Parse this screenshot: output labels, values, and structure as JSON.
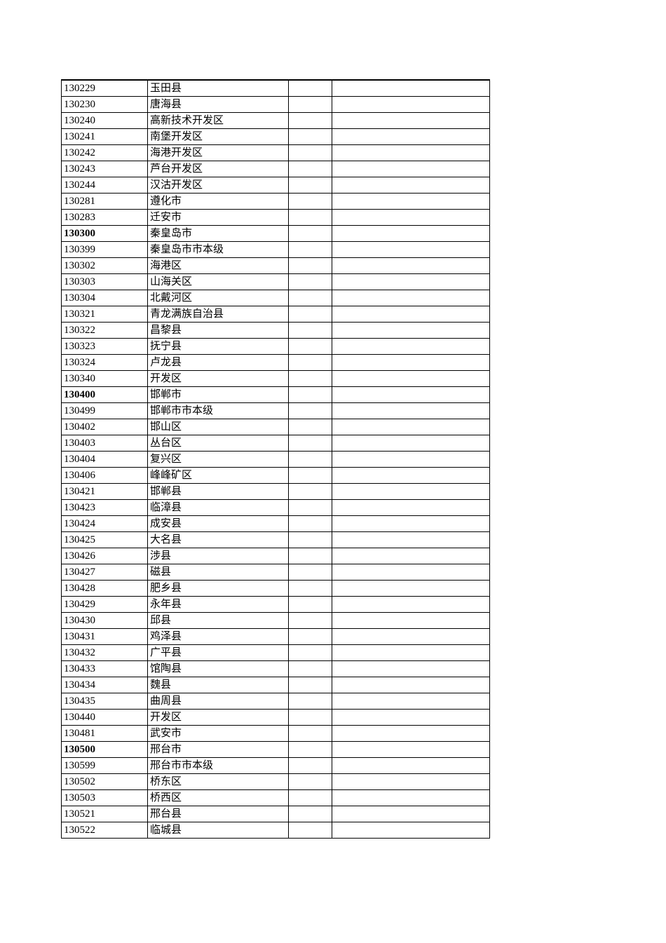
{
  "table": {
    "rows": [
      {
        "code": "130229",
        "name": "玉田县",
        "bold": false
      },
      {
        "code": "130230",
        "name": "唐海县",
        "bold": false
      },
      {
        "code": "130240",
        "name": "高新技术开发区",
        "bold": false
      },
      {
        "code": "130241",
        "name": "南堡开发区",
        "bold": false
      },
      {
        "code": "130242",
        "name": "海港开发区",
        "bold": false
      },
      {
        "code": "130243",
        "name": "芦台开发区",
        "bold": false
      },
      {
        "code": "130244",
        "name": "汉沽开发区",
        "bold": false
      },
      {
        "code": "130281",
        "name": "遵化市",
        "bold": false
      },
      {
        "code": "130283",
        "name": "迁安市",
        "bold": false
      },
      {
        "code": "130300",
        "name": "秦皇岛市",
        "bold": true
      },
      {
        "code": "130399",
        "name": "秦皇岛市市本级",
        "bold": false
      },
      {
        "code": "130302",
        "name": "海港区",
        "bold": false
      },
      {
        "code": "130303",
        "name": "山海关区",
        "bold": false
      },
      {
        "code": "130304",
        "name": "北戴河区",
        "bold": false
      },
      {
        "code": "130321",
        "name": "青龙满族自治县",
        "bold": false
      },
      {
        "code": "130322",
        "name": "昌黎县",
        "bold": false
      },
      {
        "code": "130323",
        "name": "抚宁县",
        "bold": false
      },
      {
        "code": "130324",
        "name": "卢龙县",
        "bold": false
      },
      {
        "code": "130340",
        "name": "开发区",
        "bold": false
      },
      {
        "code": "130400",
        "name": "邯郸市",
        "bold": true
      },
      {
        "code": "130499",
        "name": "邯郸市市本级",
        "bold": false
      },
      {
        "code": "130402",
        "name": "邯山区",
        "bold": false
      },
      {
        "code": "130403",
        "name": "丛台区",
        "bold": false
      },
      {
        "code": "130404",
        "name": "复兴区",
        "bold": false
      },
      {
        "code": "130406",
        "name": "峰峰矿区",
        "bold": false
      },
      {
        "code": "130421",
        "name": "邯郸县",
        "bold": false
      },
      {
        "code": "130423",
        "name": "临漳县",
        "bold": false
      },
      {
        "code": "130424",
        "name": "成安县",
        "bold": false
      },
      {
        "code": "130425",
        "name": "大名县",
        "bold": false
      },
      {
        "code": "130426",
        "name": "涉县",
        "bold": false
      },
      {
        "code": "130427",
        "name": "磁县",
        "bold": false
      },
      {
        "code": "130428",
        "name": "肥乡县",
        "bold": false
      },
      {
        "code": "130429",
        "name": "永年县",
        "bold": false
      },
      {
        "code": "130430",
        "name": "邱县",
        "bold": false
      },
      {
        "code": "130431",
        "name": "鸡泽县",
        "bold": false
      },
      {
        "code": "130432",
        "name": "广平县",
        "bold": false
      },
      {
        "code": "130433",
        "name": "馆陶县",
        "bold": false
      },
      {
        "code": "130434",
        "name": "魏县",
        "bold": false
      },
      {
        "code": "130435",
        "name": "曲周县",
        "bold": false
      },
      {
        "code": "130440",
        "name": "开发区",
        "bold": false
      },
      {
        "code": "130481",
        "name": "武安市",
        "bold": false
      },
      {
        "code": "130500",
        "name": "邢台市",
        "bold": true
      },
      {
        "code": "130599",
        "name": "邢台市市本级",
        "bold": false
      },
      {
        "code": "130502",
        "name": "桥东区",
        "bold": false
      },
      {
        "code": "130503",
        "name": "桥西区",
        "bold": false
      },
      {
        "code": "130521",
        "name": "邢台县",
        "bold": false
      },
      {
        "code": "130522",
        "name": "临城县",
        "bold": false
      }
    ]
  }
}
